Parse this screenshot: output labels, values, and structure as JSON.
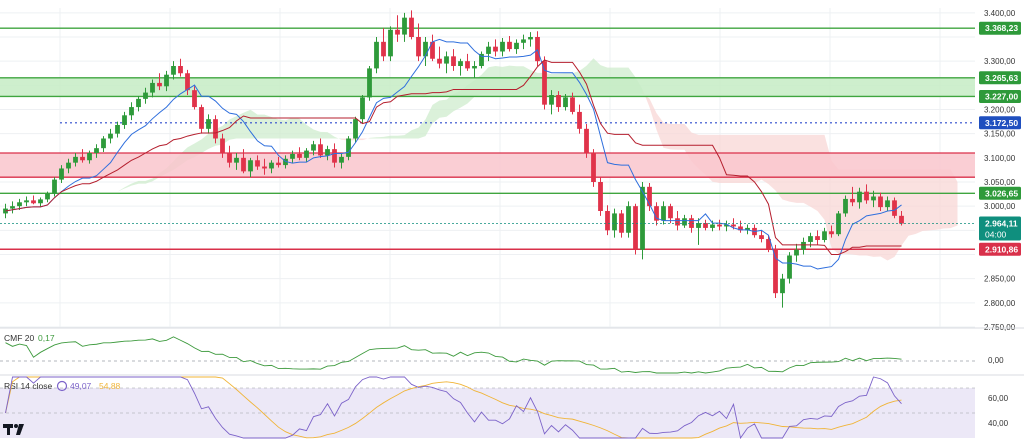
{
  "colors": {
    "bg": "#ffffff",
    "grid": "#eef0f3",
    "up": "#2e9a3a",
    "down": "#e0334a",
    "support": "#3fa53f",
    "resistance": "#d9304a",
    "resistance_zone": "#f9c6cd",
    "support_zone": "#c6ecc4",
    "cloud_green": "#cfeccd",
    "cloud_red": "#f8d7d5",
    "tenkan": "#2f6fdd",
    "kijun": "#b51f2e",
    "dotted": "#2f4bcc",
    "cmf": "#3d9a3d",
    "rsi": "#7c63c9",
    "rsi_ma": "#f0b437",
    "rsi_band": "#ece8f7",
    "tag_green": "#2e9a3a",
    "tag_blue": "#1f4fbf",
    "tag_red": "#d9304a",
    "tag_teal": "#0f8f7e"
  },
  "chart_data": [
    {
      "type": "candlestick",
      "panel": "price",
      "ylim": [
        2750,
        3410
      ],
      "yticks": [
        "3.400,00",
        "3.350,00",
        "3.300,00",
        "3.250,00",
        "3.200,00",
        "3.150,00",
        "3.100,00",
        "3.050,00",
        "3.000,00",
        "2.950,00",
        "2.900,00",
        "2.850,00",
        "2.800,00",
        "2.750,00"
      ],
      "ytick_values": [
        3400,
        3350,
        3300,
        3250,
        3200,
        3150,
        3100,
        3050,
        3000,
        2950,
        2900,
        2850,
        2800,
        2750
      ],
      "levels": [
        {
          "label": "3.368,23",
          "value": 3368.23,
          "kind": "support"
        },
        {
          "label": "3.265,63",
          "value": 3265.63,
          "kind": "support"
        },
        {
          "label": "3.227,00",
          "value": 3227.0,
          "kind": "support"
        },
        {
          "label": "3.172,50",
          "value": 3172.5,
          "kind": "dotted"
        },
        {
          "label": "3.026,65",
          "value": 3026.65,
          "kind": "support"
        },
        {
          "label": "2.910,86",
          "value": 2910.86,
          "kind": "resistance"
        }
      ],
      "zones": [
        {
          "from": 3227.0,
          "to": 3265.63,
          "kind": "support_zone"
        },
        {
          "from": 3060,
          "to": 3110,
          "kind": "resistance_zone"
        }
      ],
      "current": {
        "price": "2.964,11",
        "countdown": "04:00",
        "value": 2964.11
      },
      "candles": [
        [
          2985,
          3005,
          2975,
          2995
        ],
        [
          2995,
          3010,
          2985,
          3000
        ],
        [
          3000,
          3015,
          2992,
          3008
        ],
        [
          3008,
          3020,
          3000,
          3012
        ],
        [
          3012,
          3022,
          3004,
          3006
        ],
        [
          3006,
          3018,
          2998,
          3014
        ],
        [
          3014,
          3030,
          3008,
          3026
        ],
        [
          3026,
          3060,
          3020,
          3055
        ],
        [
          3055,
          3085,
          3048,
          3078
        ],
        [
          3078,
          3098,
          3068,
          3090
        ],
        [
          3090,
          3110,
          3082,
          3102
        ],
        [
          3102,
          3118,
          3090,
          3095
        ],
        [
          3095,
          3115,
          3088,
          3110
        ],
        [
          3110,
          3128,
          3100,
          3120
        ],
        [
          3120,
          3145,
          3112,
          3140
        ],
        [
          3140,
          3160,
          3130,
          3150
        ],
        [
          3150,
          3175,
          3142,
          3168
        ],
        [
          3168,
          3195,
          3160,
          3188
        ],
        [
          3188,
          3215,
          3178,
          3205
        ],
        [
          3205,
          3228,
          3196,
          3222
        ],
        [
          3222,
          3245,
          3212,
          3235
        ],
        [
          3235,
          3262,
          3225,
          3255
        ],
        [
          3255,
          3275,
          3240,
          3248
        ],
        [
          3248,
          3280,
          3238,
          3272
        ],
        [
          3272,
          3300,
          3262,
          3290
        ],
        [
          3290,
          3305,
          3268,
          3275
        ],
        [
          3275,
          3282,
          3230,
          3240
        ],
        [
          3240,
          3248,
          3200,
          3205
        ],
        [
          3205,
          3210,
          3150,
          3160
        ],
        [
          3160,
          3190,
          3150,
          3180
        ],
        [
          3180,
          3188,
          3130,
          3140
        ],
        [
          3140,
          3150,
          3100,
          3110
        ],
        [
          3110,
          3125,
          3080,
          3090
        ],
        [
          3090,
          3110,
          3075,
          3100
        ],
        [
          3100,
          3118,
          3068,
          3072
        ],
        [
          3072,
          3100,
          3060,
          3095
        ],
        [
          3095,
          3105,
          3075,
          3082
        ],
        [
          3082,
          3098,
          3065,
          3078
        ],
        [
          3078,
          3095,
          3068,
          3090
        ],
        [
          3090,
          3102,
          3080,
          3085
        ],
        [
          3085,
          3105,
          3078,
          3098
        ],
        [
          3098,
          3115,
          3090,
          3108
        ],
        [
          3108,
          3122,
          3095,
          3100
        ],
        [
          3100,
          3120,
          3092,
          3115
        ],
        [
          3115,
          3135,
          3105,
          3128
        ],
        [
          3128,
          3140,
          3100,
          3105
        ],
        [
          3105,
          3125,
          3095,
          3118
        ],
        [
          3118,
          3130,
          3080,
          3090
        ],
        [
          3090,
          3110,
          3078,
          3102
        ],
        [
          3102,
          3145,
          3095,
          3140
        ],
        [
          3140,
          3185,
          3132,
          3180
        ],
        [
          3180,
          3230,
          3172,
          3225
        ],
        [
          3225,
          3290,
          3218,
          3285
        ],
        [
          3285,
          3350,
          3275,
          3340
        ],
        [
          3340,
          3368,
          3300,
          3310
        ],
        [
          3310,
          3372,
          3300,
          3365
        ],
        [
          3365,
          3395,
          3340,
          3355
        ],
        [
          3355,
          3400,
          3340,
          3390
        ],
        [
          3390,
          3405,
          3345,
          3350
        ],
        [
          3350,
          3378,
          3300,
          3310
        ],
        [
          3310,
          3350,
          3290,
          3340
        ],
        [
          3340,
          3355,
          3300,
          3305
        ],
        [
          3305,
          3330,
          3285,
          3295
        ],
        [
          3295,
          3320,
          3275,
          3310
        ],
        [
          3310,
          3325,
          3280,
          3290
        ],
        [
          3290,
          3305,
          3270,
          3300
        ],
        [
          3300,
          3315,
          3280,
          3285
        ],
        [
          3285,
          3300,
          3265,
          3290
        ],
        [
          3290,
          3320,
          3285,
          3315
        ],
        [
          3315,
          3340,
          3300,
          3330
        ],
        [
          3330,
          3345,
          3310,
          3320
        ],
        [
          3320,
          3348,
          3310,
          3340
        ],
        [
          3340,
          3352,
          3320,
          3325
        ],
        [
          3325,
          3345,
          3315,
          3338
        ],
        [
          3338,
          3355,
          3325,
          3345
        ],
        [
          3345,
          3360,
          3330,
          3350
        ],
        [
          3350,
          3362,
          3290,
          3300
        ],
        [
          3300,
          3310,
          3200,
          3210
        ],
        [
          3210,
          3240,
          3190,
          3230
        ],
        [
          3230,
          3238,
          3195,
          3205
        ],
        [
          3205,
          3232,
          3198,
          3225
        ],
        [
          3225,
          3235,
          3190,
          3195
        ],
        [
          3195,
          3210,
          3150,
          3160
        ],
        [
          3160,
          3170,
          3100,
          3110
        ],
        [
          3110,
          3118,
          3040,
          3050
        ],
        [
          3050,
          3060,
          2980,
          2990
        ],
        [
          2990,
          3002,
          2940,
          2950
        ],
        [
          2950,
          2995,
          2935,
          2985
        ],
        [
          2985,
          2992,
          2935,
          2945
        ],
        [
          2945,
          3010,
          2935,
          3000
        ],
        [
          3000,
          3005,
          2900,
          2910
        ],
        [
          2910,
          3050,
          2890,
          3040
        ],
        [
          3040,
          3048,
          2990,
          3000
        ],
        [
          3000,
          3008,
          2960,
          2970
        ],
        [
          2970,
          3010,
          2962,
          3000
        ],
        [
          3000,
          3005,
          2965,
          2975
        ],
        [
          2975,
          2990,
          2950,
          2960
        ],
        [
          2960,
          2982,
          2955,
          2975
        ],
        [
          2975,
          2982,
          2945,
          2955
        ],
        [
          2955,
          2975,
          2920,
          2965
        ],
        [
          2965,
          2972,
          2950,
          2955
        ],
        [
          2955,
          2970,
          2948,
          2962
        ],
        [
          2962,
          2972,
          2950,
          2958
        ],
        [
          2958,
          2970,
          2948,
          2962
        ],
        [
          2962,
          2975,
          2952,
          2958
        ],
        [
          2958,
          2970,
          2945,
          2950
        ],
        [
          2950,
          2962,
          2942,
          2955
        ],
        [
          2955,
          2962,
          2935,
          2940
        ],
        [
          2940,
          2950,
          2925,
          2932
        ],
        [
          2932,
          2940,
          2905,
          2910
        ],
        [
          2910,
          2920,
          2810,
          2820
        ],
        [
          2820,
          2860,
          2790,
          2850
        ],
        [
          2850,
          2905,
          2840,
          2898
        ],
        [
          2898,
          2922,
          2885,
          2910
        ],
        [
          2910,
          2935,
          2900,
          2926
        ],
        [
          2926,
          2945,
          2915,
          2938
        ],
        [
          2938,
          2950,
          2920,
          2930
        ],
        [
          2930,
          2955,
          2925,
          2948
        ],
        [
          2948,
          2960,
          2935,
          2942
        ],
        [
          2942,
          2990,
          2938,
          2985
        ],
        [
          2985,
          3022,
          2978,
          3015
        ],
        [
          3015,
          3040,
          3000,
          3008
        ],
        [
          3008,
          3038,
          2995,
          3030
        ],
        [
          3030,
          3045,
          3005,
          3012
        ],
        [
          3012,
          3032,
          2998,
          3020
        ],
        [
          3020,
          3028,
          2990,
          2998
        ],
        [
          2998,
          3020,
          2990,
          3012
        ],
        [
          3012,
          3018,
          2975,
          2980
        ],
        [
          2980,
          2990,
          2960,
          2964
        ]
      ]
    },
    {
      "type": "line",
      "panel": "cmf",
      "label": "CMF 20",
      "value": "0,17",
      "yticks": [
        "0,00"
      ],
      "ylim": [
        -0.3,
        0.4
      ]
    },
    {
      "type": "line",
      "panel": "rsi",
      "label": "RSI 14 close",
      "value": "49,07",
      "ma_value": "54,88",
      "yticks": [
        "60,00",
        "40,00"
      ],
      "ylim": [
        28,
        82
      ]
    }
  ]
}
